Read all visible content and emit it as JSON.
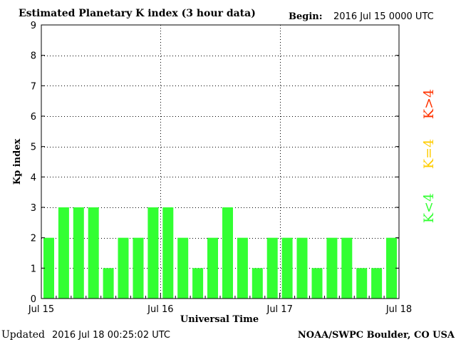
{
  "header": {
    "title": "Estimated Planetary K index (3 hour data)",
    "begin_label": "Begin:",
    "begin_value": "2016 Jul 15 0000 UTC"
  },
  "footer": {
    "updated_label": "Updated",
    "updated_value": "2016 Jul 18 00:25:02 UTC",
    "source": "NOAA/SWPC Boulder, CO USA"
  },
  "legend": [
    {
      "label": "K>4",
      "color": "#ff3300"
    },
    {
      "label": "K=4",
      "color": "#ffcc00"
    },
    {
      "label": "K<4",
      "color": "#33ff33"
    }
  ],
  "chart_data": {
    "type": "bar",
    "title": "Estimated Planetary K index (3 hour data)",
    "xlabel": "Universal Time",
    "ylabel": "Kp index",
    "ylim": [
      0,
      9
    ],
    "yticks": [
      "0",
      "1",
      "2",
      "3",
      "4",
      "5",
      "6",
      "7",
      "8",
      "9"
    ],
    "xticks": [
      "Jul 15",
      "Jul 16",
      "Jul 17",
      "Jul 18"
    ],
    "bars_per_day": 8,
    "values": [
      2,
      3,
      3,
      3,
      1,
      2,
      2,
      3,
      3,
      2,
      1,
      2,
      3,
      2,
      1,
      2,
      2,
      2,
      1,
      2,
      2,
      1,
      1,
      2
    ],
    "bar_color": "#33ff33",
    "grid": true
  }
}
